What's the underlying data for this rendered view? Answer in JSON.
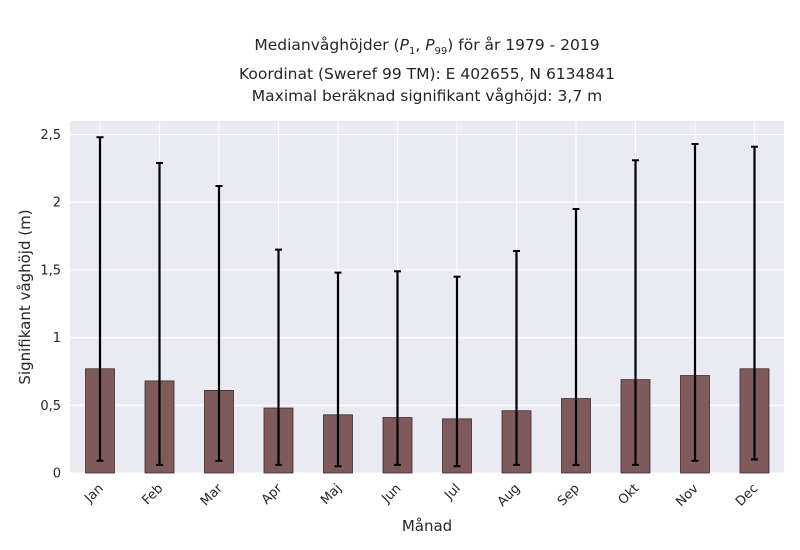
{
  "chart_data": {
    "type": "bar",
    "title_lines": [
      "Medianvåghöjder (P1, P99) för år 1979 - 2019",
      "Koordinat (Sweref 99 TM): E 402655, N 6134841",
      "Maximal beräknad signifikant våghöjd: 3,7 m"
    ],
    "xlabel": "Månad",
    "ylabel": "Signifikant våghöjd (m)",
    "categories": [
      "Jan",
      "Feb",
      "Mar",
      "Apr",
      "Maj",
      "Jun",
      "Jul",
      "Aug",
      "Sep",
      "Okt",
      "Nov",
      "Dec"
    ],
    "values": [
      0.77,
      0.68,
      0.61,
      0.48,
      0.43,
      0.41,
      0.4,
      0.46,
      0.55,
      0.69,
      0.72,
      0.77
    ],
    "error_low": [
      0.09,
      0.06,
      0.09,
      0.06,
      0.05,
      0.06,
      0.05,
      0.06,
      0.06,
      0.06,
      0.09,
      0.1
    ],
    "error_high": [
      2.48,
      2.29,
      2.12,
      1.65,
      1.48,
      1.49,
      1.45,
      1.64,
      1.95,
      2.31,
      2.43,
      2.41
    ],
    "ylim": [
      0,
      2.6
    ],
    "yticks": [
      0,
      0.5,
      1,
      1.5,
      2,
      2.5
    ],
    "ytick_labels": [
      "0",
      "0,5",
      "1",
      "1,5",
      "2",
      "2,5"
    ],
    "grid": true,
    "colors": {
      "bar": "#7f5a5a",
      "bar_edge": "#3d2a2a",
      "error": "#000000",
      "plot_bg": "#eaeaf2",
      "grid": "#ffffff"
    }
  }
}
